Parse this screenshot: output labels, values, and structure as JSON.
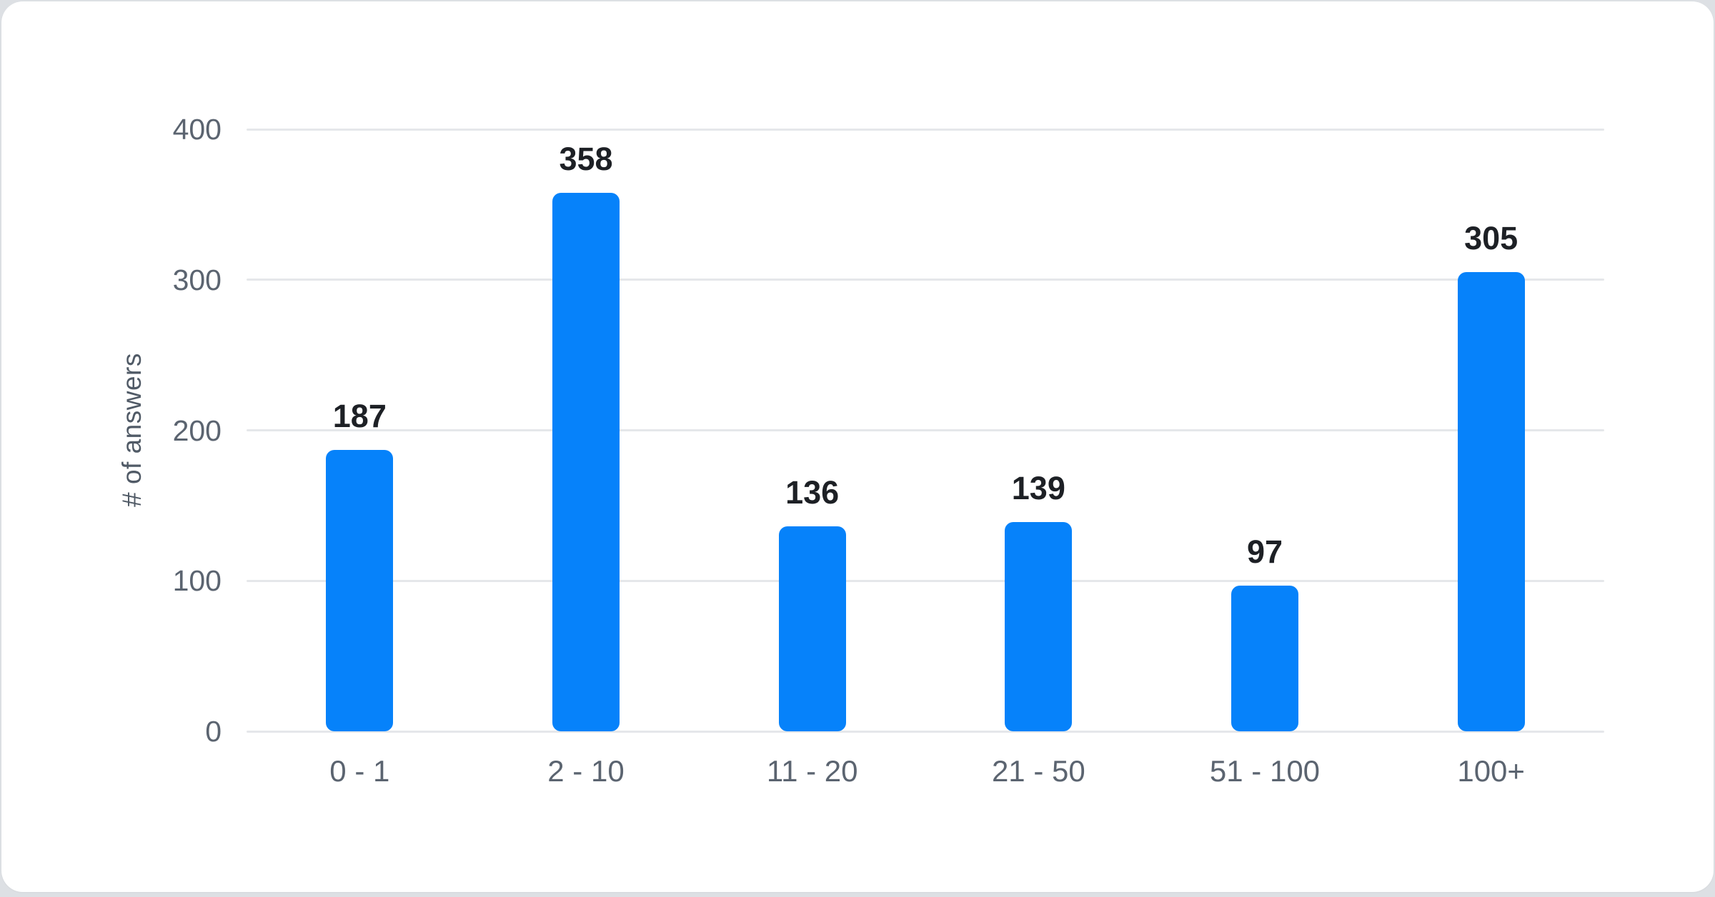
{
  "chart_data": {
    "type": "bar",
    "categories": [
      "0 - 1",
      "2 - 10",
      "11 - 20",
      "21 - 50",
      "51 - 100",
      "100+"
    ],
    "values": [
      187,
      358,
      136,
      139,
      97,
      305
    ],
    "title": "",
    "xlabel": "",
    "ylabel": "# of answers",
    "ylim": [
      0,
      400
    ],
    "yticks": [
      0,
      100,
      200,
      300,
      400
    ],
    "grid": true,
    "legend": "none",
    "bar_corner_radius": 12,
    "colors": {
      "bar": "#0682fa",
      "grid": "#e5e7ea",
      "axis_text": "#5b6470",
      "value_text": "#1d2025",
      "title_text": "#505a66",
      "card_bg": "#ffffff",
      "page_bg": "#dde0e4"
    }
  }
}
